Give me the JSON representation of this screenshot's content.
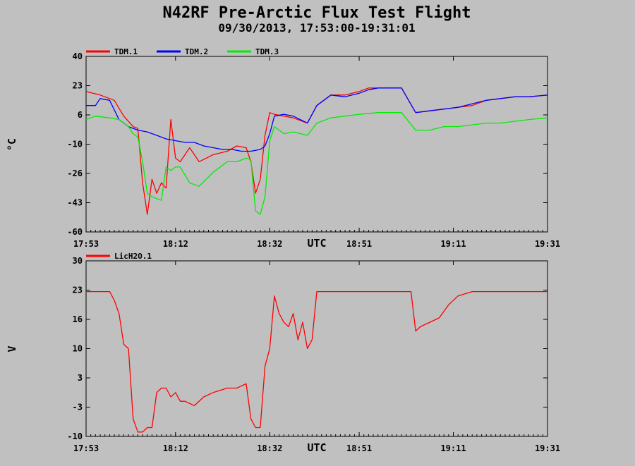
{
  "page": {
    "title": "N42RF Pre-Arctic Flux Test Flight",
    "subtitle": "09/30/2013, 17:53:00-19:31:01",
    "background": "#c0c0c0"
  },
  "chart_data": [
    {
      "type": "line",
      "ylabel": "°C",
      "xlabel": "UTC",
      "x_ticks": [
        "17:53",
        "18:12",
        "18:32",
        "18:51",
        "19:11",
        "19:31"
      ],
      "y_ticks": [
        "40",
        "23",
        "6",
        "-10",
        "-26",
        "-43",
        "-60"
      ],
      "ylim": [
        -60,
        40
      ],
      "xlim": [
        "17:53",
        "19:31"
      ],
      "grid": false,
      "legend": "top-left",
      "series": [
        {
          "name": "TDM.1",
          "color": "#ff0000",
          "x": [
            "17:53",
            "17:56",
            "17:59",
            "18:01",
            "18:03",
            "18:04",
            "18:05",
            "18:06",
            "18:07",
            "18:08",
            "18:09",
            "18:10",
            "18:11",
            "18:12",
            "18:13",
            "18:15",
            "18:17",
            "18:20",
            "18:23",
            "18:25",
            "18:27",
            "18:28",
            "18:29",
            "18:30",
            "18:31",
            "18:32",
            "18:33",
            "18:35",
            "18:37",
            "18:40",
            "18:42",
            "18:45",
            "18:48",
            "18:51",
            "18:53",
            "18:55",
            "18:57",
            "19:00",
            "19:03",
            "19:06",
            "19:09",
            "19:12",
            "19:15",
            "19:18",
            "19:21",
            "19:24",
            "19:27",
            "19:31"
          ],
          "y": [
            20,
            18,
            15,
            6,
            0,
            -1,
            -32,
            -50,
            -30,
            -38,
            -32,
            -35,
            4,
            -18,
            -20,
            -12,
            -20,
            -16,
            -14,
            -11,
            -12,
            -20,
            -38,
            -30,
            -5,
            8,
            7,
            6,
            5,
            2,
            12,
            18,
            18,
            20,
            22,
            22,
            22,
            22,
            8,
            9,
            10,
            11,
            12,
            15,
            16,
            17,
            17,
            18
          ]
        },
        {
          "name": "TDM.2",
          "color": "#0000ff",
          "x": [
            "17:53",
            "17:55",
            "17:56",
            "17:58",
            "18:00",
            "18:02",
            "18:04",
            "18:06",
            "18:08",
            "18:10",
            "18:12",
            "18:14",
            "18:16",
            "18:18",
            "18:20",
            "18:22",
            "18:24",
            "18:26",
            "18:28",
            "18:30",
            "18:31",
            "18:32",
            "18:33",
            "18:35",
            "18:37",
            "18:40",
            "18:42",
            "18:45",
            "18:48",
            "18:51",
            "18:53",
            "18:55",
            "18:57",
            "19:00",
            "19:03",
            "19:06",
            "19:09",
            "19:12",
            "19:15",
            "19:18",
            "19:21",
            "19:24",
            "19:27",
            "19:31"
          ],
          "y": [
            12,
            12,
            16,
            15,
            4,
            0,
            -2,
            -3,
            -5,
            -7,
            -8,
            -9,
            -9,
            -11,
            -12,
            -13,
            -13,
            -14,
            -14,
            -13,
            -11,
            -4,
            6,
            7,
            6,
            2,
            12,
            18,
            17,
            19,
            21,
            22,
            22,
            22,
            8,
            9,
            10,
            11,
            13,
            15,
            16,
            17,
            17,
            18
          ]
        },
        {
          "name": "TDM.3",
          "color": "#00ee00",
          "x": [
            "17:53",
            "17:55",
            "17:58",
            "18:00",
            "18:02",
            "18:03",
            "18:04",
            "18:05",
            "18:06",
            "18:07",
            "18:08",
            "18:09",
            "18:10",
            "18:11",
            "18:12",
            "18:13",
            "18:15",
            "18:17",
            "18:20",
            "18:23",
            "18:25",
            "18:27",
            "18:28",
            "18:29",
            "18:30",
            "18:31",
            "18:32",
            "18:33",
            "18:35",
            "18:37",
            "18:40",
            "18:42",
            "18:45",
            "18:48",
            "18:51",
            "18:55",
            "18:57",
            "19:00",
            "19:03",
            "19:06",
            "19:09",
            "19:12",
            "19:15",
            "19:18",
            "19:21",
            "19:24",
            "19:27",
            "19:31"
          ],
          "y": [
            4,
            6,
            5,
            4,
            0,
            -4,
            -6,
            -20,
            -38,
            -40,
            -41,
            -42,
            -23,
            -25,
            -23,
            -23,
            -32,
            -34,
            -26,
            -20,
            -20,
            -18,
            -19,
            -48,
            -50,
            -40,
            -8,
            0,
            -4,
            -3,
            -5,
            2,
            5,
            6,
            7,
            8,
            8,
            8,
            -2,
            -2,
            0,
            0,
            1,
            2,
            2,
            3,
            4,
            5
          ]
        }
      ]
    },
    {
      "type": "line",
      "ylabel": "V",
      "xlabel": "UTC",
      "x_ticks": [
        "17:53",
        "18:12",
        "18:32",
        "18:51",
        "19:11",
        "19:31"
      ],
      "y_ticks": [
        "30",
        "23",
        "16",
        "10",
        "3",
        "-3",
        "-10"
      ],
      "ylim": [
        -10,
        30
      ],
      "xlim": [
        "17:53",
        "19:31"
      ],
      "grid": false,
      "legend": "top-left",
      "series": [
        {
          "name": "LicH2O.1",
          "color": "#ff0000",
          "x": [
            "17:53",
            "17:58",
            "17:59",
            "18:00",
            "18:01",
            "18:02",
            "18:03",
            "18:04",
            "18:05",
            "18:06",
            "18:07",
            "18:08",
            "18:09",
            "18:10",
            "18:11",
            "18:12",
            "18:13",
            "18:14",
            "18:16",
            "18:18",
            "18:20",
            "18:23",
            "18:25",
            "18:27",
            "18:28",
            "18:29",
            "18:30",
            "18:31",
            "18:32",
            "18:33",
            "18:34",
            "18:35",
            "18:36",
            "18:37",
            "18:38",
            "18:39",
            "18:40",
            "18:41",
            "18:42",
            "18:45",
            "18:48",
            "18:51",
            "18:53",
            "18:55",
            "18:57",
            "19:00",
            "19:02",
            "19:03",
            "19:04",
            "19:06",
            "19:08",
            "19:10",
            "19:12",
            "19:15",
            "19:18",
            "19:21",
            "19:24",
            "19:27",
            "19:31"
          ],
          "y": [
            23,
            23,
            21,
            18,
            11,
            10,
            -6,
            -9,
            -9,
            -8,
            -8,
            0,
            1,
            1,
            -1,
            0,
            -2,
            -2,
            -3,
            -1,
            0,
            1,
            1,
            2,
            -6,
            -8,
            -8,
            6,
            10,
            22,
            18,
            16,
            15,
            18,
            12,
            16,
            10,
            12,
            23,
            23,
            23,
            23,
            23,
            23,
            23,
            23,
            23,
            14,
            15,
            16,
            17,
            20,
            22,
            23,
            23,
            23,
            23,
            23,
            23
          ]
        }
      ]
    }
  ]
}
